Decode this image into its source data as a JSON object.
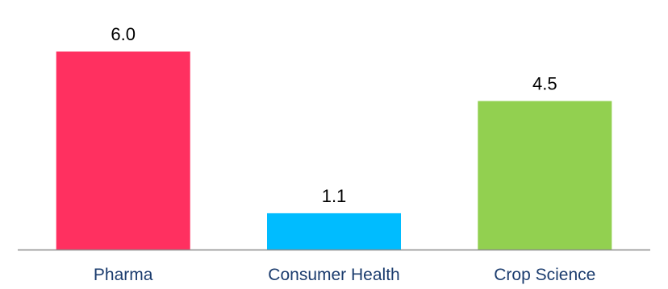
{
  "chart_data": {
    "type": "bar",
    "categories": [
      "Pharma",
      "Consumer Health",
      "Crop Science"
    ],
    "values": [
      6.0,
      1.1,
      4.5
    ],
    "value_labels": [
      "6.0",
      "1.1",
      "4.5"
    ],
    "colors": [
      "#ff3060",
      "#00bcff",
      "#92d050"
    ],
    "category_label_color": "#1b3c6e",
    "axis_color": "#8c8c8c",
    "title": "",
    "xlabel": "",
    "ylabel": "",
    "ylim": [
      0,
      6.0
    ],
    "grid": false,
    "legend": "none"
  }
}
